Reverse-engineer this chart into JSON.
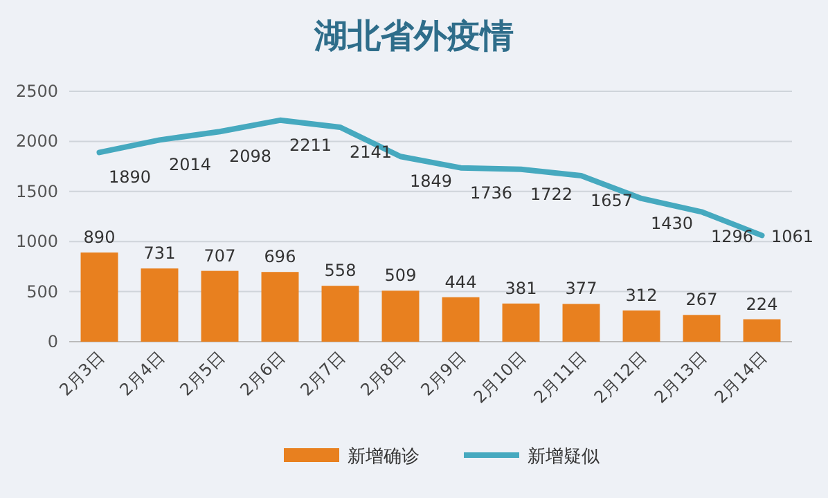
{
  "chart_data": {
    "type": "bar",
    "title": "湖北省外疫情",
    "categories": [
      "2月3日",
      "2月4日",
      "2月5日",
      "2月6日",
      "2月7日",
      "2月8日",
      "2月9日",
      "2月10日",
      "2月11日",
      "2月12日",
      "2月13日",
      "2月14日"
    ],
    "series": [
      {
        "name": "新增确诊",
        "color": "#e8801f",
        "values": [
          890,
          731,
          707,
          696,
          558,
          509,
          444,
          381,
          377,
          312,
          267,
          224
        ]
      },
      {
        "name": "新增疑似",
        "type": "line",
        "color": "#46a9bf",
        "values": [
          1890,
          2014,
          2098,
          2211,
          2141,
          1849,
          1736,
          1722,
          1657,
          1430,
          1296,
          1061
        ]
      }
    ],
    "ylim": [
      0,
      2500
    ],
    "yticks": [
      0,
      500,
      1000,
      1500,
      2000,
      2500
    ],
    "grid": "y",
    "legend": "bottom",
    "data_labels": true,
    "marker": "none",
    "line_style": "solid"
  }
}
